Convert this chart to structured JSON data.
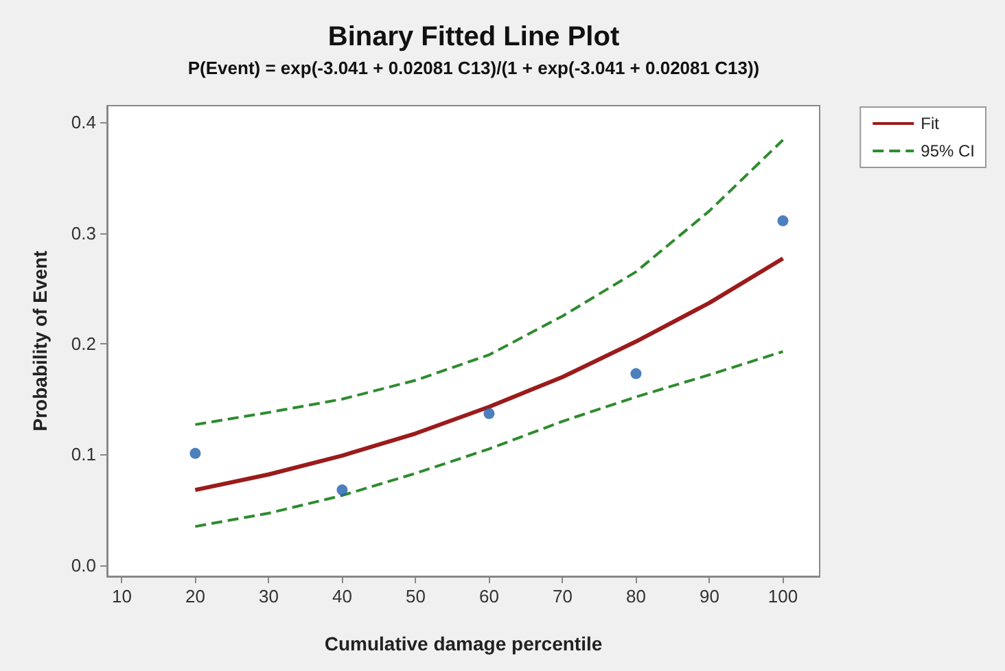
{
  "chart_data": {
    "type": "line",
    "title": "Binary Fitted Line Plot",
    "subtitle": "P(Event) = exp(-3.041 + 0.02081 C13)/(1 + exp(-3.041 + 0.02081 C13))",
    "xlabel": "Cumulative damage percentile",
    "ylabel": "Probability of Event",
    "series": [
      {
        "type": "scatter",
        "color": "#1f5fae",
        "marker": "circle",
        "x": [
          20,
          40,
          60,
          80,
          100
        ],
        "values": [
          0.101,
          0.068,
          0.137,
          0.173,
          0.311
        ]
      },
      {
        "name": "Fit",
        "color": "#9b1b1b",
        "line_style": "solid",
        "x": [
          20,
          30,
          40,
          50,
          60,
          70,
          80,
          90,
          100
        ],
        "values": [
          0.068,
          0.082,
          0.099,
          0.119,
          0.143,
          0.17,
          0.202,
          0.237,
          0.277
        ]
      },
      {
        "name": "95% CI",
        "color": "#2e8b2e",
        "line_style": "dashed",
        "x": [
          20,
          30,
          40,
          50,
          60,
          70,
          80,
          90,
          100
        ],
        "values": [
          0.127,
          0.138,
          0.15,
          0.167,
          0.19,
          0.225,
          0.265,
          0.32,
          0.384
        ]
      },
      {
        "color": "#2e8b2e",
        "line_style": "dashed",
        "x": [
          20,
          30,
          40,
          50,
          60,
          70,
          80,
          90,
          100
        ],
        "values": [
          0.035,
          0.047,
          0.063,
          0.083,
          0.105,
          0.13,
          0.152,
          0.172,
          0.193
        ]
      }
    ],
    "xlim": [
      8,
      105
    ],
    "xticks": [
      10,
      20,
      30,
      40,
      50,
      60,
      70,
      80,
      90,
      100
    ],
    "ylim": [
      -0.01,
      0.415
    ],
    "yticks": [
      {
        "value": 0,
        "label": "0.0"
      },
      {
        "value": 0.1,
        "label": "0.1"
      },
      {
        "value": 0.2,
        "label": "0.2"
      },
      {
        "value": 0.3,
        "label": "0.3"
      },
      {
        "value": 0.4,
        "label": "0.4"
      }
    ],
    "grid": false,
    "legend": "top right"
  }
}
